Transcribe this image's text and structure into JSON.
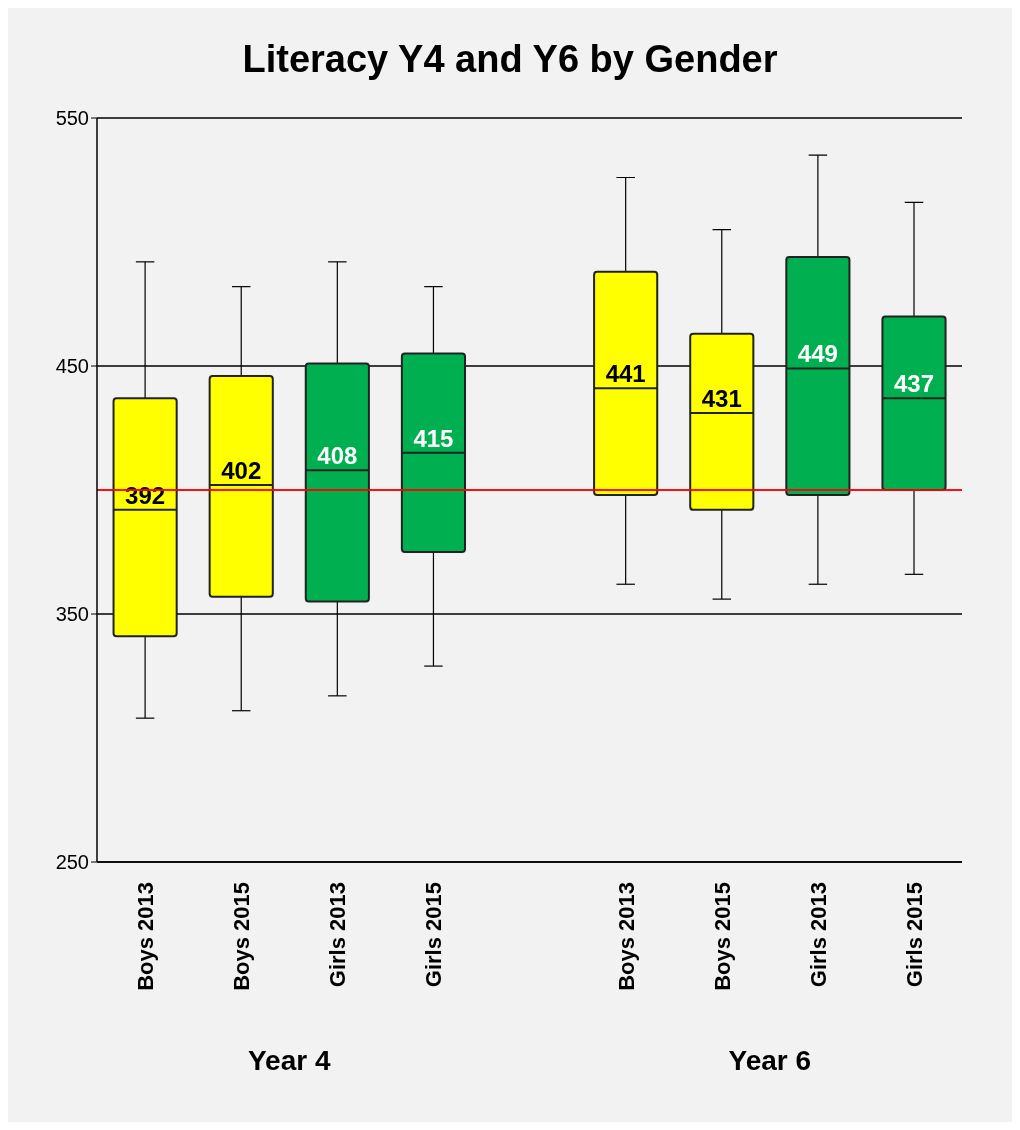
{
  "chart_data": {
    "type": "box",
    "title": "Literacy Y4 and Y6 by Gender",
    "categories": [
      "Boys 2013",
      "Boys 2015",
      "Girls 2013",
      "Girls 2015",
      null,
      "Boys 2013",
      "Boys 2015",
      "Girls 2013",
      "Girls 2015"
    ],
    "colors": [
      "#ffff00",
      "#ffff00",
      "#00b050",
      "#00b050",
      null,
      "#ffff00",
      "#ffff00",
      "#00b050",
      "#00b050"
    ],
    "boxes": [
      {
        "low": 308,
        "q1": 341,
        "median": 392,
        "q3": 437,
        "high": 492
      },
      {
        "low": 311,
        "q1": 357,
        "median": 402,
        "q3": 446,
        "high": 482
      },
      {
        "low": 317,
        "q1": 355,
        "median": 408,
        "q3": 451,
        "high": 492
      },
      {
        "low": 329,
        "q1": 375,
        "median": 415,
        "q3": 455,
        "high": 482
      },
      null,
      {
        "low": 362,
        "q1": 398,
        "median": 441,
        "q3": 488,
        "high": 526
      },
      {
        "low": 356,
        "q1": 392,
        "median": 431,
        "q3": 463,
        "high": 505
      },
      {
        "low": 362,
        "q1": 398,
        "median": 449,
        "q3": 494,
        "high": 535
      },
      {
        "low": 366,
        "q1": 400,
        "median": 437,
        "q3": 470,
        "high": 516
      }
    ],
    "value_labels": [
      "392",
      "402",
      "408",
      "415",
      null,
      "441",
      "431",
      "449",
      "437"
    ],
    "ylim": [
      250,
      550
    ],
    "yticks": [
      250,
      350,
      450,
      550
    ],
    "grid": "y",
    "ref_lines": [
      {
        "axis": "y",
        "value": 400,
        "color": "#ff0000"
      }
    ],
    "annotations": [
      "Year 4",
      "Year 6"
    ]
  }
}
